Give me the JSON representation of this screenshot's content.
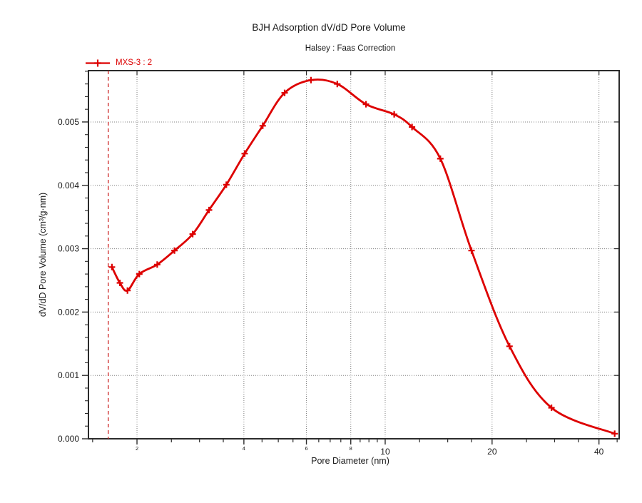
{
  "title": "BJH Adsorption dV/dD Pore Volume",
  "subtitle": "Halsey : Faas Correction",
  "legend": {
    "series_label": "MXS-3 : 2"
  },
  "colors": {
    "series": "#dd0000",
    "lower_limit_line": "#cc2222",
    "grid": "#808080",
    "axis": "#2b2b2b",
    "text": "#1a1a1a",
    "background": "#ffffff"
  },
  "chart_data": {
    "type": "line",
    "title": "BJH Adsorption dV/dD Pore Volume",
    "subtitle": "Halsey : Faas Correction",
    "xlabel": "Pore Diameter (nm)",
    "ylabel": "dV/dD Pore Volume (cm³/g·nm)",
    "x_scale": "log",
    "y_scale": "linear",
    "xlim": [
      1.46,
      45.6
    ],
    "ylim": [
      0,
      0.00581
    ],
    "grid": true,
    "legend_position": "top-left",
    "x_major_ticks": {
      "values": [
        2,
        4,
        6,
        8,
        10,
        20,
        40
      ],
      "labels": [
        "2",
        "4",
        "6",
        "8",
        "10",
        "20",
        "40"
      ],
      "small_labels": [
        2,
        4,
        6,
        8
      ]
    },
    "x_minor_ticks": [
      1.5,
      2.5,
      3,
      3.5,
      4.5,
      5,
      5.5,
      6.5,
      7,
      7.5,
      8.5,
      9,
      9.5,
      12.5,
      15,
      17.5,
      25,
      30,
      35,
      45
    ],
    "y_major_ticks": {
      "values": [
        0,
        0.001,
        0.002,
        0.003,
        0.004,
        0.005
      ],
      "labels": [
        "0.000",
        "0.001",
        "0.002",
        "0.003",
        "0.004",
        "0.005"
      ]
    },
    "y_minor_step": 0.0002,
    "annotations": [
      {
        "type": "vline",
        "x": 1.66,
        "style": "dashed",
        "color": "#cc2222",
        "name": "bjh-lower-limit-line"
      }
    ],
    "series": [
      {
        "name": "MXS-3 : 2",
        "color": "#dd0000",
        "marker": "plus",
        "x": [
          1.7,
          1.79,
          1.88,
          2.03,
          2.28,
          2.55,
          2.87,
          3.19,
          3.57,
          4.02,
          4.52,
          5.21,
          6.18,
          7.33,
          8.83,
          10.6,
          11.9,
          14.3,
          17.5,
          22.4,
          29.4,
          44.3
        ],
        "y": [
          0.00271,
          0.00246,
          0.00234,
          0.0026,
          0.00275,
          0.00297,
          0.00323,
          0.00361,
          0.00401,
          0.0045,
          0.00494,
          0.00546,
          0.00566,
          0.0056,
          0.00528,
          0.00512,
          0.00492,
          0.00442,
          0.00297,
          0.00146,
          0.00049,
          8e-05
        ]
      }
    ]
  }
}
